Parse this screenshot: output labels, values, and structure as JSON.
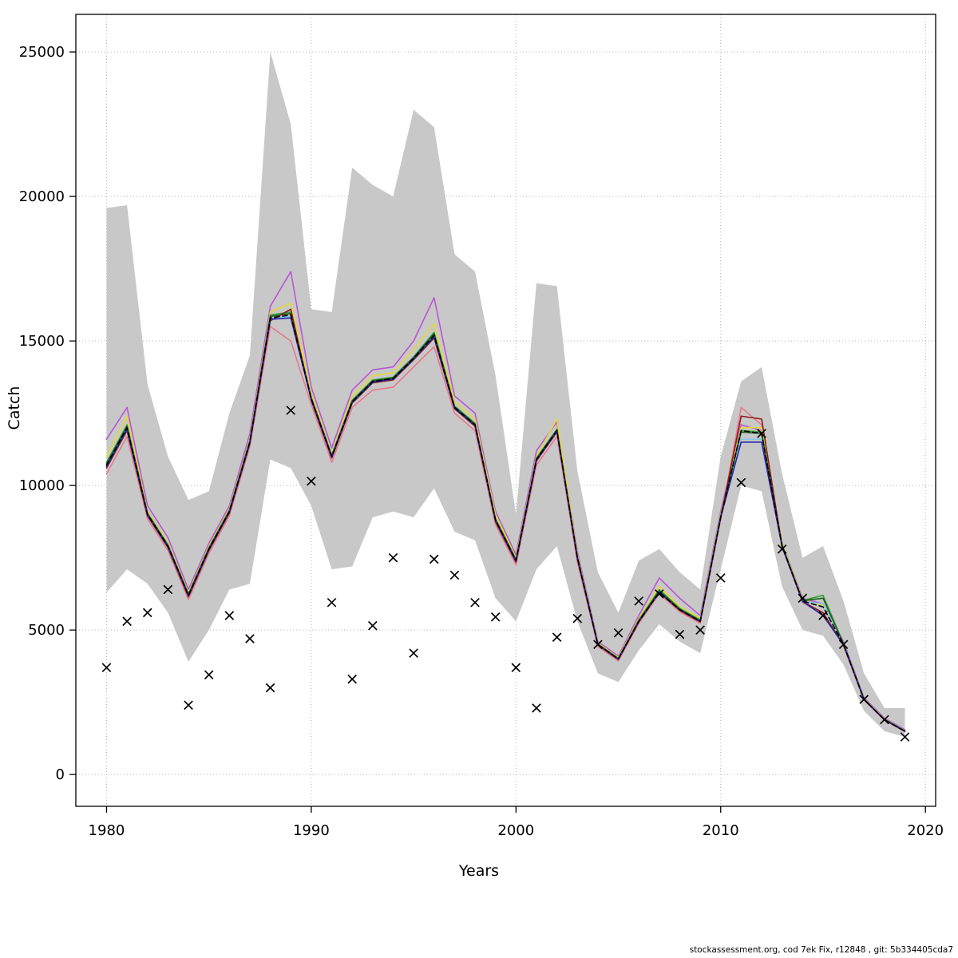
{
  "footer": "stockassessment.org, cod 7ek Fix, r12848 , git: 5b334405cda7",
  "chart_data": {
    "type": "line",
    "title": "",
    "xlabel": "Years",
    "ylabel": "Catch",
    "xlim": [
      1978.5,
      2020.5
    ],
    "ylim": [
      -1100,
      26300
    ],
    "grid": "dotted",
    "legend": "none",
    "xticks": [
      1980,
      1990,
      2000,
      2010,
      2020
    ],
    "yticks": [
      0,
      5000,
      10000,
      15000,
      20000,
      25000
    ],
    "xtick_labels": [
      "1980",
      "1990",
      "2000",
      "2010",
      "2020"
    ],
    "ytick_labels": [
      "0",
      "5000",
      "10000",
      "15000",
      "20000",
      "25000"
    ],
    "years": [
      1980,
      1981,
      1982,
      1983,
      1984,
      1985,
      1986,
      1987,
      1988,
      1989,
      1990,
      1991,
      1992,
      1993,
      1994,
      1995,
      1996,
      1997,
      1998,
      1999,
      2000,
      2001,
      2002,
      2003,
      2004,
      2005,
      2006,
      2007,
      2008,
      2009,
      2010,
      2011,
      2012,
      2013,
      2014,
      2015,
      2016,
      2017,
      2018,
      2019
    ],
    "band": {
      "name": "confidence-band",
      "color": "#c8c8c8",
      "upper": [
        19600,
        19700,
        13500,
        11000,
        9500,
        9800,
        12500,
        14500,
        25000,
        22500,
        16100,
        16000,
        21000,
        20400,
        20000,
        23000,
        22400,
        18000,
        17400,
        13800,
        9000,
        17000,
        16900,
        10500,
        7000,
        5600,
        7400,
        7800,
        7000,
        6400,
        11000,
        13600,
        14100,
        10400,
        7500,
        7900,
        6000,
        3500,
        2300,
        2300
      ],
      "lower": [
        6300,
        7100,
        6600,
        5600,
        3900,
        5000,
        6400,
        6600,
        10900,
        10600,
        9300,
        7100,
        7200,
        8900,
        9100,
        8900,
        9900,
        8400,
        8100,
        6100,
        5300,
        7100,
        7900,
        5300,
        3500,
        3200,
        4300,
        5200,
        4600,
        4200,
        7100,
        10000,
        9800,
        6500,
        5000,
        4800,
        3800,
        2200,
        1500,
        1300
      ]
    },
    "series": [
      {
        "name": "run-magenta",
        "color": "#BA55D3",
        "dash": "",
        "values": [
          11600,
          12700,
          9300,
          8200,
          6400,
          8000,
          9300,
          11800,
          16200,
          17400,
          13400,
          11300,
          13300,
          14000,
          14100,
          15000,
          16500,
          13100,
          12500,
          9100,
          7600,
          11200,
          12200,
          7700,
          4600,
          4100,
          5500,
          6800,
          6100,
          5500,
          9100,
          12100,
          11900,
          8000,
          6100,
          5900,
          4600,
          2650,
          1950,
          1550
        ]
      },
      {
        "name": "run-salmon",
        "color": "#E8788C",
        "dash": "",
        "values": [
          10400,
          11700,
          8850,
          7750,
          6050,
          7650,
          8950,
          11350,
          15500,
          15000,
          12800,
          10800,
          12700,
          13300,
          13400,
          14100,
          14800,
          12500,
          11900,
          8650,
          7250,
          10700,
          11700,
          7350,
          4430,
          3930,
          5230,
          6250,
          5630,
          5230,
          8830,
          12700,
          12100,
          7850,
          5950,
          5550,
          4450,
          2580,
          1880,
          1480
        ]
      },
      {
        "name": "run-yellow",
        "color": "#E6D73A",
        "dash": "",
        "values": [
          11000,
          12400,
          9100,
          8000,
          6300,
          7900,
          9200,
          11600,
          16000,
          16300,
          13200,
          11100,
          13100,
          13800,
          13900,
          14700,
          15600,
          12900,
          12300,
          9000,
          7500,
          11000,
          12300,
          7600,
          4550,
          4050,
          5400,
          6500,
          5800,
          5400,
          9000,
          12000,
          12000,
          8000,
          6050,
          5850,
          4550,
          2620,
          1920,
          1520
        ]
      },
      {
        "name": "run-skyblue",
        "color": "#8AC6E8",
        "dash": "",
        "values": [
          10680,
          11980,
          9000,
          7900,
          6200,
          7800,
          9100,
          11500,
          15780,
          15850,
          13000,
          11000,
          12900,
          13600,
          13700,
          14400,
          15200,
          12700,
          12100,
          8800,
          7400,
          10900,
          11900,
          7500,
          4500,
          4000,
          5320,
          6340,
          5710,
          5310,
          8910,
          11600,
          11600,
          7900,
          6000,
          5900,
          4560,
          2600,
          1900,
          1500
        ]
      },
      {
        "name": "run-green",
        "color": "#2FA12F",
        "dash": "",
        "values": [
          10800,
          12100,
          9050,
          7950,
          6250,
          7850,
          9150,
          11550,
          15900,
          16000,
          13050,
          11050,
          12950,
          13650,
          13750,
          14450,
          15300,
          12750,
          12150,
          8850,
          7450,
          10950,
          11950,
          7550,
          4520,
          4020,
          5350,
          6400,
          5750,
          5350,
          8950,
          11900,
          11850,
          7950,
          6020,
          6200,
          4530,
          2610,
          1910,
          1510
        ]
      },
      {
        "name": "run-darkgreen",
        "color": "#1B5E20",
        "dash": "",
        "values": [
          10750,
          12050,
          9020,
          7920,
          6220,
          7820,
          9120,
          11520,
          15850,
          15950,
          13020,
          11020,
          12920,
          13620,
          13720,
          14420,
          15250,
          12720,
          12120,
          8820,
          7420,
          10920,
          11920,
          7520,
          4510,
          4010,
          5320,
          6350,
          5720,
          5320,
          8920,
          11850,
          11800,
          7920,
          6010,
          6100,
          4520,
          2605,
          1905,
          1505
        ]
      },
      {
        "name": "run-darkred",
        "color": "#8B1A1A",
        "dash": "",
        "values": [
          10600,
          11900,
          8950,
          7850,
          6150,
          7750,
          9050,
          11450,
          15700,
          16100,
          12950,
          10950,
          12850,
          13550,
          13650,
          14350,
          15100,
          12650,
          12050,
          8750,
          7350,
          10850,
          11850,
          7450,
          4480,
          3980,
          5280,
          6300,
          5680,
          5280,
          8880,
          12400,
          12300,
          7900,
          5980,
          5600,
          4480,
          2590,
          1890,
          1490
        ]
      },
      {
        "name": "run-blue",
        "color": "#2424AA",
        "dash": "",
        "values": [
          10650,
          11950,
          8980,
          7880,
          6180,
          7780,
          9080,
          11480,
          15750,
          15800,
          12980,
          10980,
          12880,
          13580,
          13680,
          14380,
          15150,
          12680,
          12080,
          8780,
          7380,
          10880,
          11880,
          7480,
          4490,
          3990,
          5300,
          6320,
          5700,
          5300,
          8900,
          11500,
          11500,
          7880,
          5990,
          5500,
          4500,
          2595,
          1895,
          1495
        ]
      },
      {
        "name": "run-base-black",
        "color": "#000000",
        "dash": "6,4",
        "values": [
          10700,
          12000,
          9000,
          7900,
          6200,
          7800,
          9100,
          11500,
          15800,
          15900,
          13000,
          11000,
          12900,
          13600,
          13700,
          14400,
          15200,
          12700,
          12100,
          8800,
          7400,
          10900,
          11900,
          7500,
          4500,
          4000,
          5300,
          6300,
          5700,
          5300,
          8900,
          11900,
          11800,
          7900,
          6000,
          5800,
          4500,
          2600,
          1900,
          1500
        ]
      }
    ],
    "observed": {
      "name": "observed-catch",
      "marker": "x",
      "color": "#000000",
      "values": [
        3700,
        5300,
        5600,
        6400,
        2400,
        3450,
        5500,
        4700,
        3000,
        12600,
        10150,
        5950,
        3300,
        5150,
        7500,
        4200,
        7450,
        6900,
        5950,
        5450,
        3700,
        2300,
        4750,
        5400,
        4500,
        4900,
        6000,
        6250,
        4850,
        5000,
        6800,
        10100,
        11800,
        7800,
        6100,
        5500,
        4500,
        2600,
        1900,
        1300
      ]
    }
  }
}
